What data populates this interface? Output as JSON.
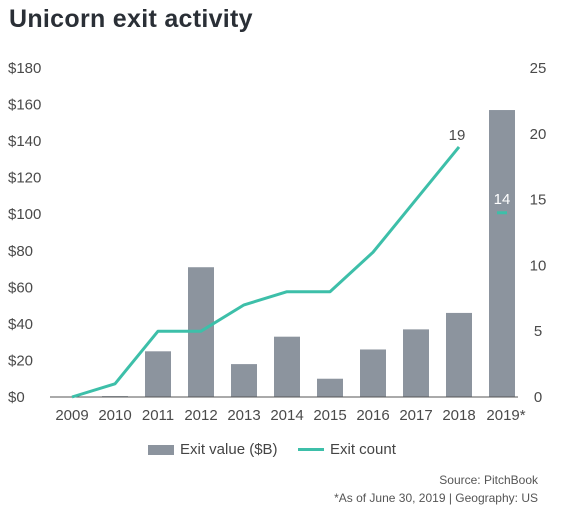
{
  "title": "Unicorn exit activity",
  "chart_data": {
    "type": "bar",
    "categories": [
      "2009",
      "2010",
      "2011",
      "2012",
      "2013",
      "2014",
      "2015",
      "2016",
      "2017",
      "2018",
      "2019*"
    ],
    "series": [
      {
        "name": "Exit value ($B)",
        "type": "bar",
        "axis": "left",
        "values": [
          0,
          0.5,
          25,
          71,
          18,
          33,
          10,
          26,
          37,
          46,
          157
        ]
      },
      {
        "name": "Exit count",
        "type": "line",
        "axis": "right",
        "values": [
          0,
          1,
          5,
          5,
          7,
          8,
          8,
          11,
          15,
          19,
          14
        ]
      }
    ],
    "y_left": {
      "min": 0,
      "max": 180,
      "ticks": [
        "$0",
        "$20",
        "$40",
        "$60",
        "$80",
        "$100",
        "$120",
        "$140",
        "$160",
        "$180"
      ]
    },
    "y_right": {
      "min": 0,
      "max": 25,
      "ticks": [
        "0",
        "5",
        "10",
        "15",
        "20",
        "25"
      ]
    },
    "data_labels": [
      {
        "category": "2018",
        "series": "Exit count",
        "text": "19"
      },
      {
        "category": "2019*",
        "series": "Exit count",
        "text": "14"
      }
    ],
    "colors": {
      "bar": "#8c949e",
      "line": "#3dbfa9",
      "axis": "#555555"
    },
    "grid": false,
    "legend_position": "bottom"
  },
  "legend": {
    "bar_label": "Exit value ($B)",
    "line_label": "Exit count"
  },
  "footer": {
    "source": "Source: PitchBook",
    "note": "*As of June 30, 2019 | Geography: US"
  }
}
